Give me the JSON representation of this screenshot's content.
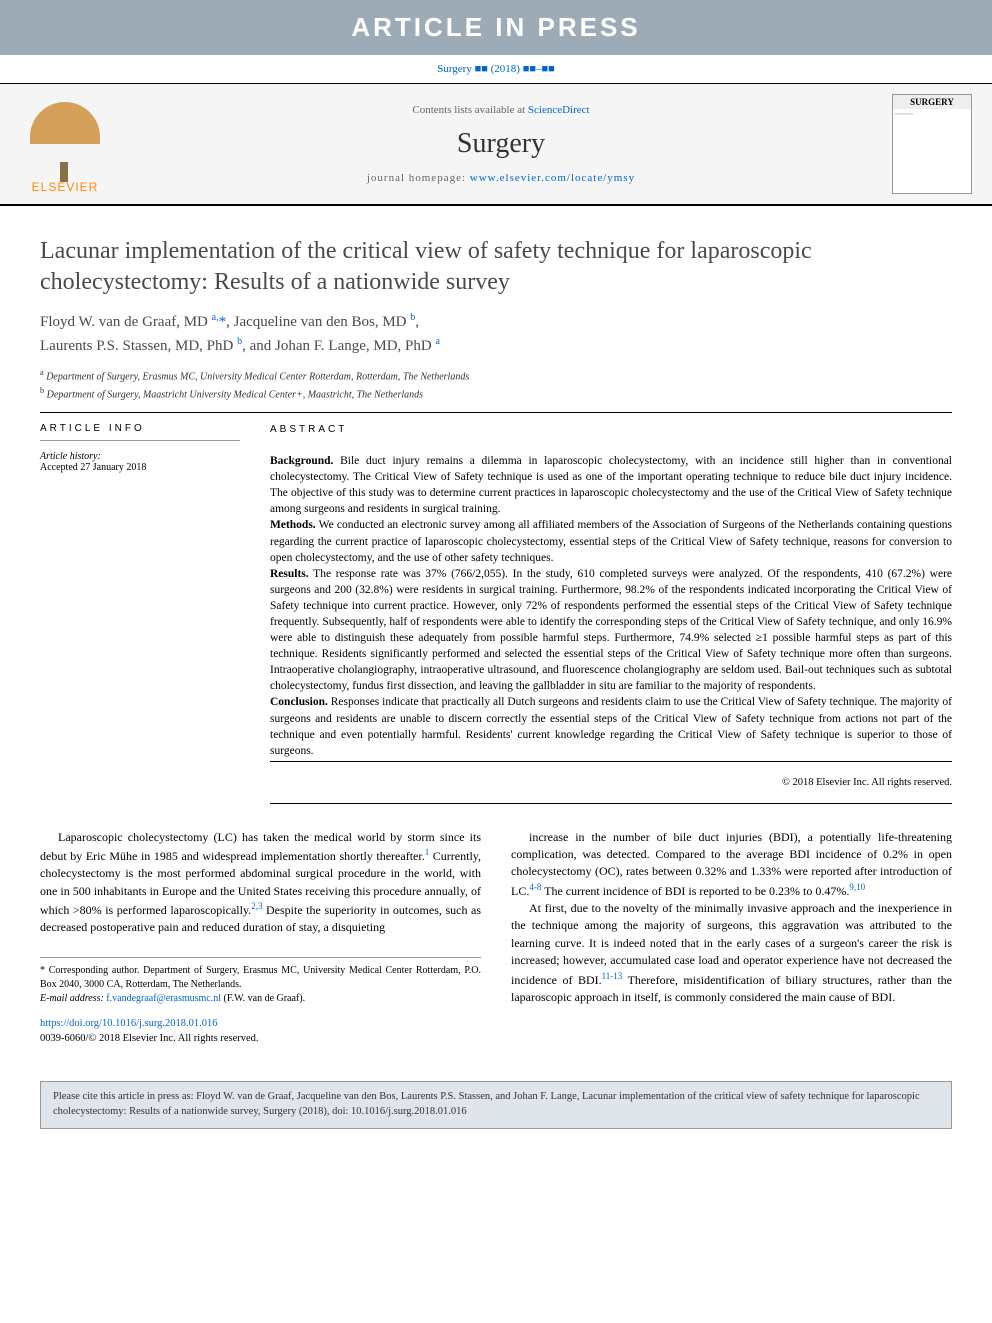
{
  "banner": {
    "text": "ARTICLE IN PRESS"
  },
  "header": {
    "journal_ref_prefix": "Surgery",
    "journal_ref_suffix": "(2018)",
    "journal_ref_pages": "■■–■■",
    "contents_prefix": "Contents lists available at ",
    "contents_link": "ScienceDirect",
    "journal_name": "Surgery",
    "homepage_prefix": "journal homepage: ",
    "homepage_url": "www.elsevier.com/locate/ymsy",
    "elsevier_label": "ELSEVIER",
    "cover_label": "SURGERY"
  },
  "title": "Lacunar implementation of the critical view of safety technique for laparoscopic cholecystectomy: Results of a nationwide survey",
  "authors_html": "Floyd W. van de Graaf, MD <sup>a,</sup><span class='corr'>*</span>, Jacqueline van den Bos, MD <sup>b</sup>,<br>Laurents P.S. Stassen, MD, PhD <sup>b</sup>, and Johan F. Lange, MD, PhD <sup>a</sup>",
  "affiliations": [
    {
      "sup": "a",
      "text": "Department of Surgery, Erasmus MC, University Medical Center Rotterdam, Rotterdam, The Netherlands"
    },
    {
      "sup": "b",
      "text": "Department of Surgery, Maastricht University Medical Center+, Maastricht, The Netherlands"
    }
  ],
  "info": {
    "header": "ARTICLE INFO",
    "history_label": "Article history:",
    "accepted": "Accepted 27 January 2018"
  },
  "abstract": {
    "header": "ABSTRACT",
    "sections": [
      {
        "label": "Background.",
        "text": "Bile duct injury remains a dilemma in laparoscopic cholecystectomy, with an incidence still higher than in conventional cholecystectomy. The Critical View of Safety technique is used as one of the important operating technique to reduce bile duct injury incidence. The objective of this study was to determine current practices in laparoscopic cholecystectomy and the use of the Critical View of Safety technique among surgeons and residents in surgical training."
      },
      {
        "label": "Methods.",
        "text": "We conducted an electronic survey among all affiliated members of the Association of Surgeons of the Netherlands containing questions regarding the current practice of laparoscopic cholecystectomy, essential steps of the Critical View of Safety technique, reasons for conversion to open cholecystectomy, and the use of other safety techniques."
      },
      {
        "label": "Results.",
        "text": "The response rate was 37% (766/2,055). In the study, 610 completed surveys were analyzed. Of the respondents, 410 (67.2%) were surgeons and 200 (32.8%) were residents in surgical training. Furthermore, 98.2% of the respondents indicated incorporating the Critical View of Safety technique into current practice. However, only 72% of respondents performed the essential steps of the Critical View of Safety technique frequently. Subsequently, half of respondents were able to identify the corresponding steps of the Critical View of Safety technique, and only 16.9% were able to distinguish these adequately from possible harmful steps. Furthermore, 74.9% selected ≥1 possible harmful steps as part of this technique. Residents significantly performed and selected the essential steps of the Critical View of Safety technique more often than surgeons. Intraoperative cholangiography, intraoperative ultrasound, and fluorescence cholangiography are seldom used. Bail-out techniques such as subtotal cholecystectomy, fundus first dissection, and leaving the gallbladder in situ are familiar to the majority of respondents."
      },
      {
        "label": "Conclusion.",
        "text": "Responses indicate that practically all Dutch surgeons and residents claim to use the Critical View of Safety technique. The majority of surgeons and residents are unable to discern correctly the essential steps of the Critical View of Safety technique from actions not part of the technique and even potentially harmful. Residents' current knowledge regarding the Critical View of Safety technique is superior to those of surgeons."
      }
    ],
    "copyright": "© 2018 Elsevier Inc. All rights reserved."
  },
  "body": {
    "col1_p1": "Laparoscopic cholecystectomy (LC) has taken the medical world by storm since its debut by Eric Mühe in 1985 and widespread implementation shortly thereafter.<sup><a>1</a></sup> Currently, cholecystectomy is the most performed abdominal surgical procedure in the world, with one in 500 inhabitants in Europe and the United States receiving this procedure annually, of which >80% is performed laparoscopically.<sup><a>2,3</a></sup> Despite the superiority in outcomes, such as decreased postoperative pain and reduced duration of stay, a disquieting",
    "col2_p1": "increase in the number of bile duct injuries (BDI), a potentially life-threatening complication, was detected. Compared to the average BDI incidence of 0.2% in open cholecystectomy (OC), rates between 0.32% and 1.33% were reported after introduction of LC.<sup><a>4-8</a></sup> The current incidence of BDI is reported to be 0.23% to 0.47%.<sup><a>9,10</a></sup>",
    "col2_p2": "At first, due to the novelty of the minimally invasive approach and the inexperience in the technique among the majority of surgeons, this aggravation was attributed to the learning curve. It is indeed noted that in the early cases of a surgeon's career the risk is increased; however, accumulated case load and operator experience have not decreased the incidence of BDI.<sup><a>11-13</a></sup> Therefore, misidentification of biliary structures, rather than the laparoscopic approach in itself, is commonly considered the main cause of BDI."
  },
  "footnote": {
    "corr_label": "* Corresponding author. Department of Surgery, Erasmus MC, University Medical Center Rotterdam, P.O. Box 2040, 3000 CA, Rotterdam, The Netherlands.",
    "email_label": "E-mail address:",
    "email": "f.vandegraaf@erasmusmc.nl",
    "email_suffix": "(F.W. van de Graaf)."
  },
  "doi": {
    "url": "https://doi.org/10.1016/j.surg.2018.01.016",
    "issn_line": "0039-6060/© 2018 Elsevier Inc. All rights reserved."
  },
  "citebox": "Please cite this article in press as: Floyd W. van de Graaf, Jacqueline van den Bos, Laurents P.S. Stassen, and Johan F. Lange, Lacunar implementation of the critical view of safety technique for laparoscopic cholecystectomy: Results of a nationwide survey, Surgery (2018), doi: 10.1016/j.surg.2018.01.016"
}
